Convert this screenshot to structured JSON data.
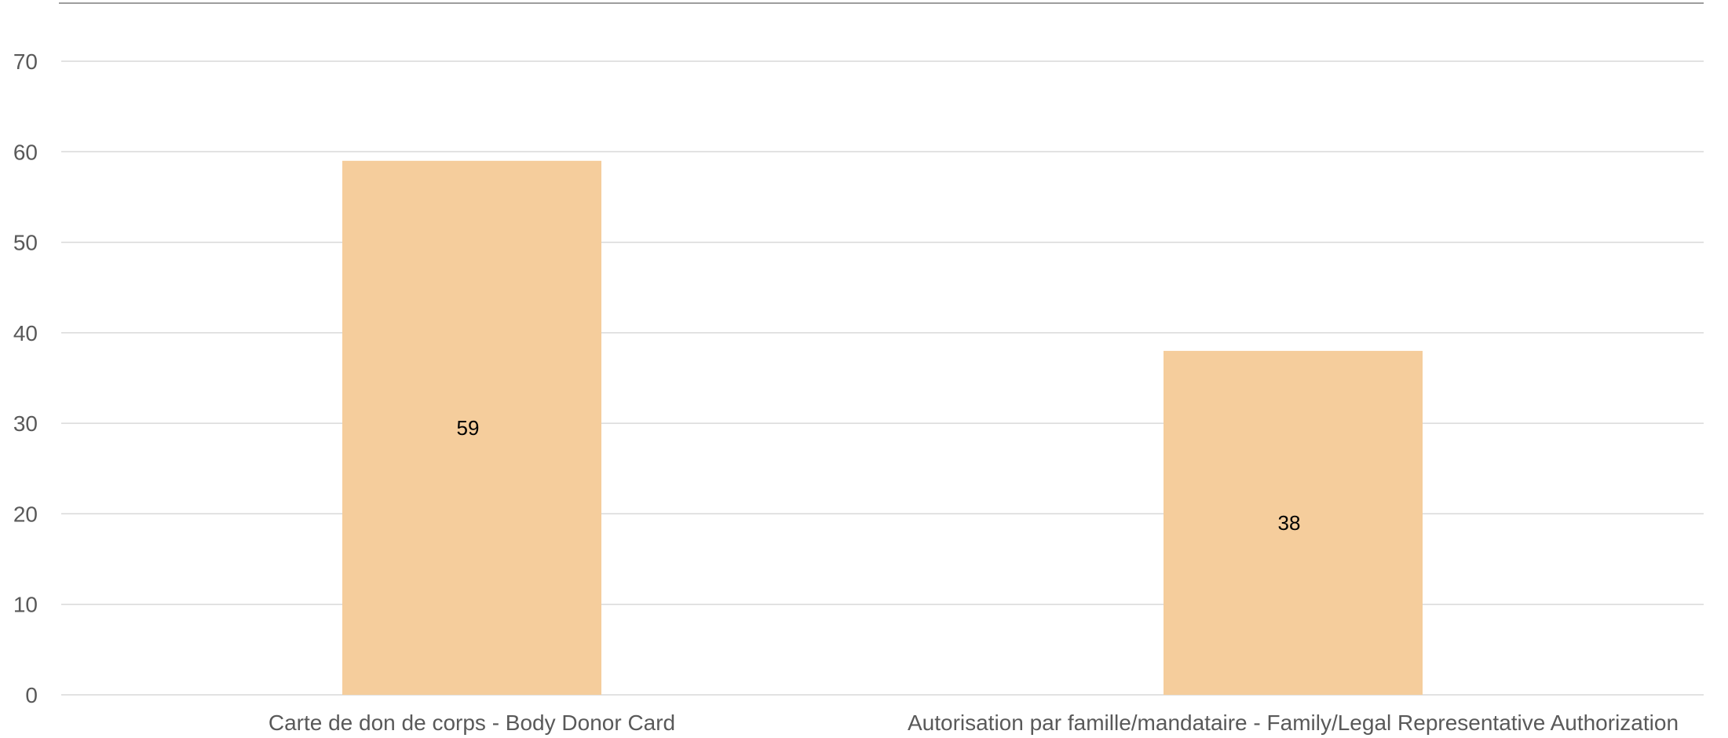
{
  "chart_data": {
    "type": "bar",
    "categories": [
      "Carte de don de corps - Body Donor Card",
      "Autorisation par famille/mandataire - Family/Legal Representative Authorization"
    ],
    "values": [
      59,
      38
    ],
    "data_labels": [
      "59",
      "38"
    ],
    "yticks": [
      "0",
      "10",
      "20",
      "30",
      "40",
      "50",
      "60",
      "70"
    ],
    "ylim": [
      0,
      70
    ],
    "title": "",
    "xlabel": "",
    "ylabel": "",
    "grid": true,
    "legend": "none",
    "colors": {
      "bar": "#f5cd9c",
      "grid": "#d9d9d9",
      "axis_text": "#595959",
      "data_label": "#000000"
    }
  }
}
